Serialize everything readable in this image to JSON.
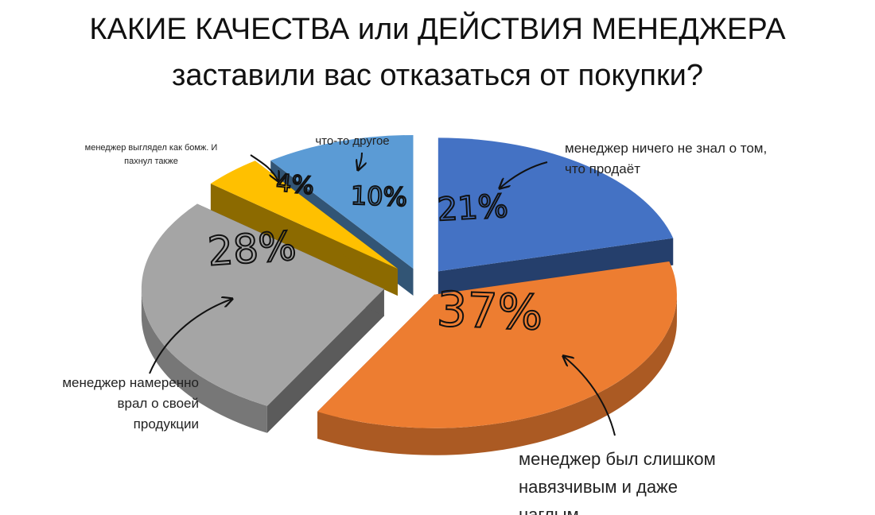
{
  "title": {
    "line1": "КАКИЕ КАЧЕСТВА или ДЕЙСТВИЯ МЕНЕДЖЕРА",
    "line2": "заставили вас отказаться от покупки?"
  },
  "chart_data": {
    "type": "pie",
    "title": "КАКИЕ КАЧЕСТВА или ДЕЙСТВИЯ МЕНЕДЖЕРА заставили вас отказаться от покупки?",
    "slices": [
      {
        "label": "менеджер ничего не знал о том, что продаёт",
        "value": 21,
        "value_label": "21%",
        "color": "#4472C4"
      },
      {
        "label": "менеджер был слишком навязчивым и даже наглым",
        "value": 37,
        "value_label": "37%",
        "color": "#ED7D31"
      },
      {
        "label": "менеджер намеренно врал о своей продукции",
        "value": 28,
        "value_label": "28%",
        "color": "#A5A5A5"
      },
      {
        "label": "менеджер выглядел как бомж. И пахнул также",
        "value": 4,
        "value_label": "4%",
        "color": "#FFC000"
      },
      {
        "label": "что-то другое",
        "value": 10,
        "value_label": "10%",
        "color": "#5B9BD5"
      }
    ]
  }
}
